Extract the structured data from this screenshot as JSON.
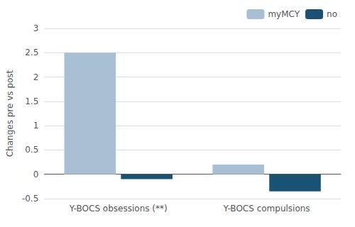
{
  "chart_data": {
    "type": "bar",
    "ylabel": "Changes pre vs post",
    "categories": [
      "Y-BOCS obsessions (**)",
      "Y-BOCS compulsions"
    ],
    "series": [
      {
        "name": "myMCY",
        "color": "#a8bfd4",
        "values": [
          2.5,
          0.2
        ]
      },
      {
        "name": "no",
        "color": "#1a5276",
        "values": [
          -0.1,
          -0.35
        ]
      }
    ],
    "ylim": [
      -0.5,
      3.0
    ],
    "yticks": [
      -0.5,
      0,
      0.5,
      1,
      1.5,
      2,
      2.5,
      3
    ],
    "grid": true,
    "legend": "upper right"
  }
}
